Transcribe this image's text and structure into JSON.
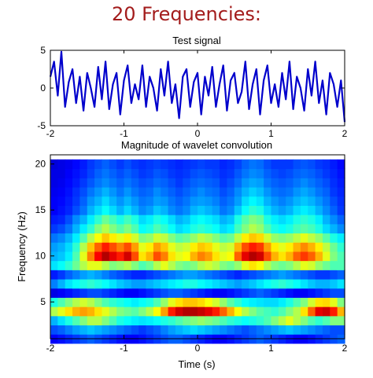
{
  "slide": {
    "title": "20 Frequencies:",
    "title_color": "#a31c1c"
  },
  "chart_data": [
    {
      "type": "line",
      "title": "Test signal",
      "xlabel": "",
      "ylabel": "",
      "xlim": [
        -2,
        2
      ],
      "ylim": [
        -5,
        5
      ],
      "xticks": [
        "-2",
        "-1",
        "0",
        "1",
        "2"
      ],
      "yticks": [
        "5",
        "0",
        "-5"
      ],
      "line_color": "#0000cc",
      "series": [
        {
          "x": [
            -2.0,
            -1.95,
            -1.9,
            -1.85,
            -1.8,
            -1.75,
            -1.7,
            -1.65,
            -1.6,
            -1.55,
            -1.5,
            -1.45,
            -1.4,
            -1.35,
            -1.3,
            -1.25,
            -1.2,
            -1.15,
            -1.1,
            -1.05,
            -1.0,
            -0.95,
            -0.9,
            -0.85,
            -0.8,
            -0.75,
            -0.7,
            -0.65,
            -0.6,
            -0.55,
            -0.5,
            -0.45,
            -0.4,
            -0.35,
            -0.3,
            -0.25,
            -0.2,
            -0.15,
            -0.1,
            -0.05,
            0.0,
            0.05,
            0.1,
            0.15,
            0.2,
            0.25,
            0.3,
            0.35,
            0.4,
            0.45,
            0.5,
            0.55,
            0.6,
            0.65,
            0.7,
            0.75,
            0.8,
            0.85,
            0.9,
            0.95,
            1.0,
            1.05,
            1.1,
            1.15,
            1.2,
            1.25,
            1.3,
            1.35,
            1.4,
            1.45,
            1.5,
            1.55,
            1.6,
            1.65,
            1.7,
            1.75,
            1.8,
            1.85,
            1.9,
            1.95,
            2.0
          ],
          "y": [
            1.5,
            3.5,
            -1.0,
            4.8,
            -2.5,
            0.8,
            2.5,
            -2.0,
            1.5,
            -3.0,
            2.0,
            0.0,
            -2.5,
            2.8,
            -1.5,
            3.5,
            -2.8,
            0.5,
            2.0,
            -3.5,
            1.0,
            3.0,
            -2.0,
            0.5,
            -1.5,
            3.0,
            -2.5,
            1.5,
            0.0,
            -3.0,
            2.5,
            -1.0,
            3.5,
            -2.0,
            0.5,
            -4.0,
            1.5,
            2.5,
            -2.5,
            0.8,
            2.0,
            -3.5,
            1.5,
            -1.0,
            2.8,
            -2.5,
            0.5,
            3.0,
            -3.0,
            1.0,
            2.0,
            -2.0,
            -0.5,
            3.5,
            -2.8,
            0.5,
            2.5,
            -3.5,
            1.0,
            3.0,
            -2.0,
            0.5,
            -2.5,
            2.0,
            -1.5,
            3.5,
            -2.8,
            1.5,
            0.0,
            -3.0,
            2.5,
            -1.0,
            3.5,
            -2.0,
            1.0,
            -3.5,
            2.0,
            0.5,
            -2.5,
            1.0,
            -4.5
          ]
        }
      ]
    },
    {
      "type": "heatmap",
      "title": "Magnitude of wavelet convolution",
      "xlabel": "Time (s)",
      "ylabel": "Frequency (Hz)",
      "xlim": [
        -2,
        2
      ],
      "ylim": [
        1,
        21
      ],
      "xticks": [
        "-2",
        "-1",
        "0",
        "1",
        "2"
      ],
      "yticks": [
        "20",
        "15",
        "10",
        "5"
      ],
      "colormap": "jet",
      "frequencies": [
        1,
        2,
        3,
        4,
        5,
        6,
        7,
        8,
        9,
        10,
        11,
        12,
        13,
        14,
        15,
        16,
        17,
        18,
        19,
        20
      ],
      "time_bins": 40,
      "rows": [
        [
          0.12,
          0.14,
          0.16,
          0.18,
          0.2,
          0.22,
          0.2,
          0.18,
          0.16,
          0.14,
          0.12,
          0.12,
          0.14,
          0.16,
          0.18,
          0.2,
          0.22,
          0.22,
          0.2,
          0.18,
          0.16,
          0.14,
          0.12,
          0.12,
          0.14,
          0.16,
          0.18,
          0.2,
          0.22,
          0.2,
          0.18,
          0.16,
          0.14,
          0.12,
          0.12,
          0.14,
          0.16,
          0.18,
          0.2,
          0.22
        ],
        [
          0.2,
          0.22,
          0.25,
          0.28,
          0.3,
          0.32,
          0.3,
          0.28,
          0.26,
          0.24,
          0.22,
          0.2,
          0.18,
          0.2,
          0.22,
          0.25,
          0.28,
          0.3,
          0.32,
          0.34,
          0.32,
          0.3,
          0.28,
          0.26,
          0.24,
          0.22,
          0.2,
          0.22,
          0.24,
          0.26,
          0.28,
          0.3,
          0.32,
          0.3,
          0.28,
          0.26,
          0.24,
          0.22,
          0.2,
          0.2
        ],
        [
          0.3,
          0.35,
          0.4,
          0.45,
          0.5,
          0.55,
          0.55,
          0.5,
          0.45,
          0.4,
          0.38,
          0.36,
          0.35,
          0.36,
          0.38,
          0.4,
          0.42,
          0.45,
          0.48,
          0.5,
          0.52,
          0.5,
          0.48,
          0.45,
          0.42,
          0.4,
          0.38,
          0.4,
          0.42,
          0.45,
          0.5,
          0.55,
          0.6,
          0.55,
          0.5,
          0.45,
          0.42,
          0.45,
          0.5,
          0.5
        ],
        [
          0.55,
          0.6,
          0.65,
          0.7,
          0.72,
          0.7,
          0.65,
          0.6,
          0.55,
          0.5,
          0.48,
          0.46,
          0.5,
          0.55,
          0.62,
          0.72,
          0.85,
          0.92,
          0.95,
          0.95,
          0.93,
          0.9,
          0.85,
          0.78,
          0.7,
          0.62,
          0.55,
          0.5,
          0.46,
          0.44,
          0.42,
          0.45,
          0.5,
          0.55,
          0.65,
          0.78,
          0.9,
          0.92,
          0.85,
          0.7
        ],
        [
          0.4,
          0.45,
          0.5,
          0.55,
          0.58,
          0.55,
          0.5,
          0.45,
          0.42,
          0.4,
          0.38,
          0.36,
          0.38,
          0.4,
          0.45,
          0.52,
          0.6,
          0.65,
          0.68,
          0.68,
          0.66,
          0.62,
          0.58,
          0.52,
          0.46,
          0.42,
          0.38,
          0.36,
          0.35,
          0.34,
          0.34,
          0.36,
          0.4,
          0.45,
          0.5,
          0.58,
          0.65,
          0.66,
          0.6,
          0.5
        ],
        [
          0.1,
          0.12,
          0.14,
          0.16,
          0.18,
          0.2,
          0.2,
          0.18,
          0.16,
          0.14,
          0.12,
          0.12,
          0.14,
          0.16,
          0.18,
          0.2,
          0.22,
          0.22,
          0.2,
          0.18,
          0.16,
          0.14,
          0.12,
          0.12,
          0.14,
          0.16,
          0.18,
          0.2,
          0.22,
          0.2,
          0.18,
          0.16,
          0.14,
          0.12,
          0.12,
          0.14,
          0.16,
          0.18,
          0.2,
          0.2
        ],
        [
          0.25,
          0.3,
          0.35,
          0.38,
          0.4,
          0.42,
          0.4,
          0.38,
          0.35,
          0.32,
          0.3,
          0.28,
          0.28,
          0.3,
          0.32,
          0.34,
          0.36,
          0.38,
          0.4,
          0.4,
          0.38,
          0.36,
          0.34,
          0.32,
          0.3,
          0.28,
          0.3,
          0.32,
          0.35,
          0.38,
          0.4,
          0.42,
          0.4,
          0.38,
          0.35,
          0.32,
          0.3,
          0.3,
          0.32,
          0.35
        ],
        [
          0.15,
          0.18,
          0.22,
          0.25,
          0.28,
          0.3,
          0.28,
          0.25,
          0.22,
          0.2,
          0.18,
          0.16,
          0.16,
          0.18,
          0.2,
          0.22,
          0.24,
          0.26,
          0.28,
          0.28,
          0.26,
          0.24,
          0.22,
          0.2,
          0.18,
          0.16,
          0.18,
          0.2,
          0.22,
          0.24,
          0.26,
          0.28,
          0.26,
          0.24,
          0.22,
          0.2,
          0.18,
          0.18,
          0.2,
          0.22
        ],
        [
          0.35,
          0.38,
          0.42,
          0.48,
          0.55,
          0.6,
          0.6,
          0.55,
          0.5,
          0.52,
          0.55,
          0.5,
          0.45,
          0.48,
          0.55,
          0.6,
          0.55,
          0.5,
          0.48,
          0.5,
          0.55,
          0.58,
          0.55,
          0.5,
          0.48,
          0.52,
          0.6,
          0.65,
          0.62,
          0.55,
          0.5,
          0.48,
          0.5,
          0.55,
          0.6,
          0.58,
          0.52,
          0.48,
          0.45,
          0.45
        ],
        [
          0.3,
          0.32,
          0.36,
          0.45,
          0.6,
          0.75,
          0.88,
          0.95,
          0.9,
          0.85,
          0.92,
          0.8,
          0.65,
          0.7,
          0.8,
          0.75,
          0.65,
          0.6,
          0.62,
          0.7,
          0.75,
          0.72,
          0.65,
          0.6,
          0.62,
          0.78,
          0.9,
          0.95,
          0.92,
          0.8,
          0.7,
          0.65,
          0.7,
          0.78,
          0.82,
          0.78,
          0.7,
          0.6,
          0.5,
          0.45
        ],
        [
          0.28,
          0.3,
          0.34,
          0.42,
          0.55,
          0.68,
          0.78,
          0.85,
          0.8,
          0.75,
          0.8,
          0.72,
          0.6,
          0.64,
          0.72,
          0.68,
          0.6,
          0.56,
          0.58,
          0.64,
          0.68,
          0.66,
          0.6,
          0.56,
          0.58,
          0.7,
          0.8,
          0.85,
          0.82,
          0.72,
          0.64,
          0.6,
          0.64,
          0.7,
          0.74,
          0.7,
          0.64,
          0.56,
          0.48,
          0.42
        ],
        [
          0.24,
          0.26,
          0.3,
          0.36,
          0.45,
          0.55,
          0.62,
          0.68,
          0.64,
          0.6,
          0.64,
          0.58,
          0.5,
          0.52,
          0.58,
          0.56,
          0.5,
          0.46,
          0.48,
          0.52,
          0.56,
          0.54,
          0.5,
          0.46,
          0.48,
          0.56,
          0.64,
          0.68,
          0.66,
          0.58,
          0.52,
          0.5,
          0.52,
          0.56,
          0.6,
          0.56,
          0.52,
          0.46,
          0.4,
          0.36
        ],
        [
          0.18,
          0.2,
          0.24,
          0.3,
          0.36,
          0.42,
          0.5,
          0.55,
          0.5,
          0.46,
          0.5,
          0.45,
          0.38,
          0.4,
          0.45,
          0.42,
          0.38,
          0.34,
          0.36,
          0.4,
          0.42,
          0.4,
          0.38,
          0.34,
          0.36,
          0.44,
          0.5,
          0.55,
          0.52,
          0.45,
          0.4,
          0.38,
          0.4,
          0.44,
          0.46,
          0.44,
          0.4,
          0.34,
          0.3,
          0.26
        ],
        [
          0.15,
          0.16,
          0.2,
          0.26,
          0.3,
          0.36,
          0.42,
          0.48,
          0.44,
          0.4,
          0.44,
          0.4,
          0.34,
          0.36,
          0.4,
          0.38,
          0.34,
          0.3,
          0.32,
          0.36,
          0.38,
          0.36,
          0.34,
          0.3,
          0.32,
          0.4,
          0.46,
          0.5,
          0.48,
          0.4,
          0.36,
          0.34,
          0.36,
          0.4,
          0.42,
          0.4,
          0.36,
          0.3,
          0.26,
          0.22
        ],
        [
          0.12,
          0.14,
          0.16,
          0.2,
          0.24,
          0.3,
          0.34,
          0.38,
          0.34,
          0.3,
          0.34,
          0.3,
          0.26,
          0.28,
          0.32,
          0.3,
          0.26,
          0.24,
          0.26,
          0.3,
          0.32,
          0.3,
          0.28,
          0.24,
          0.26,
          0.32,
          0.38,
          0.42,
          0.4,
          0.34,
          0.3,
          0.28,
          0.3,
          0.34,
          0.36,
          0.34,
          0.3,
          0.26,
          0.22,
          0.18
        ],
        [
          0.12,
          0.13,
          0.15,
          0.18,
          0.22,
          0.27,
          0.3,
          0.34,
          0.3,
          0.27,
          0.3,
          0.27,
          0.24,
          0.25,
          0.28,
          0.27,
          0.24,
          0.22,
          0.24,
          0.27,
          0.28,
          0.27,
          0.25,
          0.22,
          0.24,
          0.28,
          0.34,
          0.37,
          0.35,
          0.3,
          0.27,
          0.25,
          0.27,
          0.3,
          0.32,
          0.3,
          0.27,
          0.24,
          0.2,
          0.17
        ],
        [
          0.11,
          0.12,
          0.14,
          0.17,
          0.2,
          0.24,
          0.27,
          0.3,
          0.27,
          0.24,
          0.27,
          0.24,
          0.22,
          0.23,
          0.26,
          0.24,
          0.22,
          0.2,
          0.22,
          0.24,
          0.26,
          0.24,
          0.23,
          0.2,
          0.22,
          0.26,
          0.3,
          0.33,
          0.31,
          0.27,
          0.24,
          0.23,
          0.24,
          0.27,
          0.29,
          0.27,
          0.24,
          0.22,
          0.18,
          0.16
        ],
        [
          0.1,
          0.11,
          0.13,
          0.15,
          0.18,
          0.21,
          0.24,
          0.26,
          0.24,
          0.22,
          0.24,
          0.22,
          0.2,
          0.21,
          0.23,
          0.22,
          0.2,
          0.18,
          0.2,
          0.22,
          0.23,
          0.22,
          0.21,
          0.18,
          0.2,
          0.23,
          0.27,
          0.29,
          0.28,
          0.24,
          0.22,
          0.21,
          0.22,
          0.24,
          0.26,
          0.24,
          0.22,
          0.2,
          0.17,
          0.15
        ],
        [
          0.1,
          0.1,
          0.12,
          0.14,
          0.16,
          0.19,
          0.22,
          0.24,
          0.22,
          0.2,
          0.22,
          0.2,
          0.18,
          0.19,
          0.21,
          0.2,
          0.18,
          0.17,
          0.18,
          0.2,
          0.21,
          0.2,
          0.19,
          0.17,
          0.18,
          0.21,
          0.24,
          0.26,
          0.25,
          0.22,
          0.2,
          0.19,
          0.2,
          0.22,
          0.23,
          0.22,
          0.2,
          0.18,
          0.16,
          0.14
        ],
        [
          0.09,
          0.1,
          0.11,
          0.13,
          0.15,
          0.18,
          0.2,
          0.22,
          0.2,
          0.18,
          0.2,
          0.18,
          0.17,
          0.18,
          0.19,
          0.18,
          0.17,
          0.16,
          0.17,
          0.18,
          0.19,
          0.18,
          0.18,
          0.16,
          0.17,
          0.19,
          0.22,
          0.24,
          0.23,
          0.2,
          0.18,
          0.18,
          0.18,
          0.2,
          0.21,
          0.2,
          0.18,
          0.17,
          0.15,
          0.13
        ]
      ]
    }
  ]
}
